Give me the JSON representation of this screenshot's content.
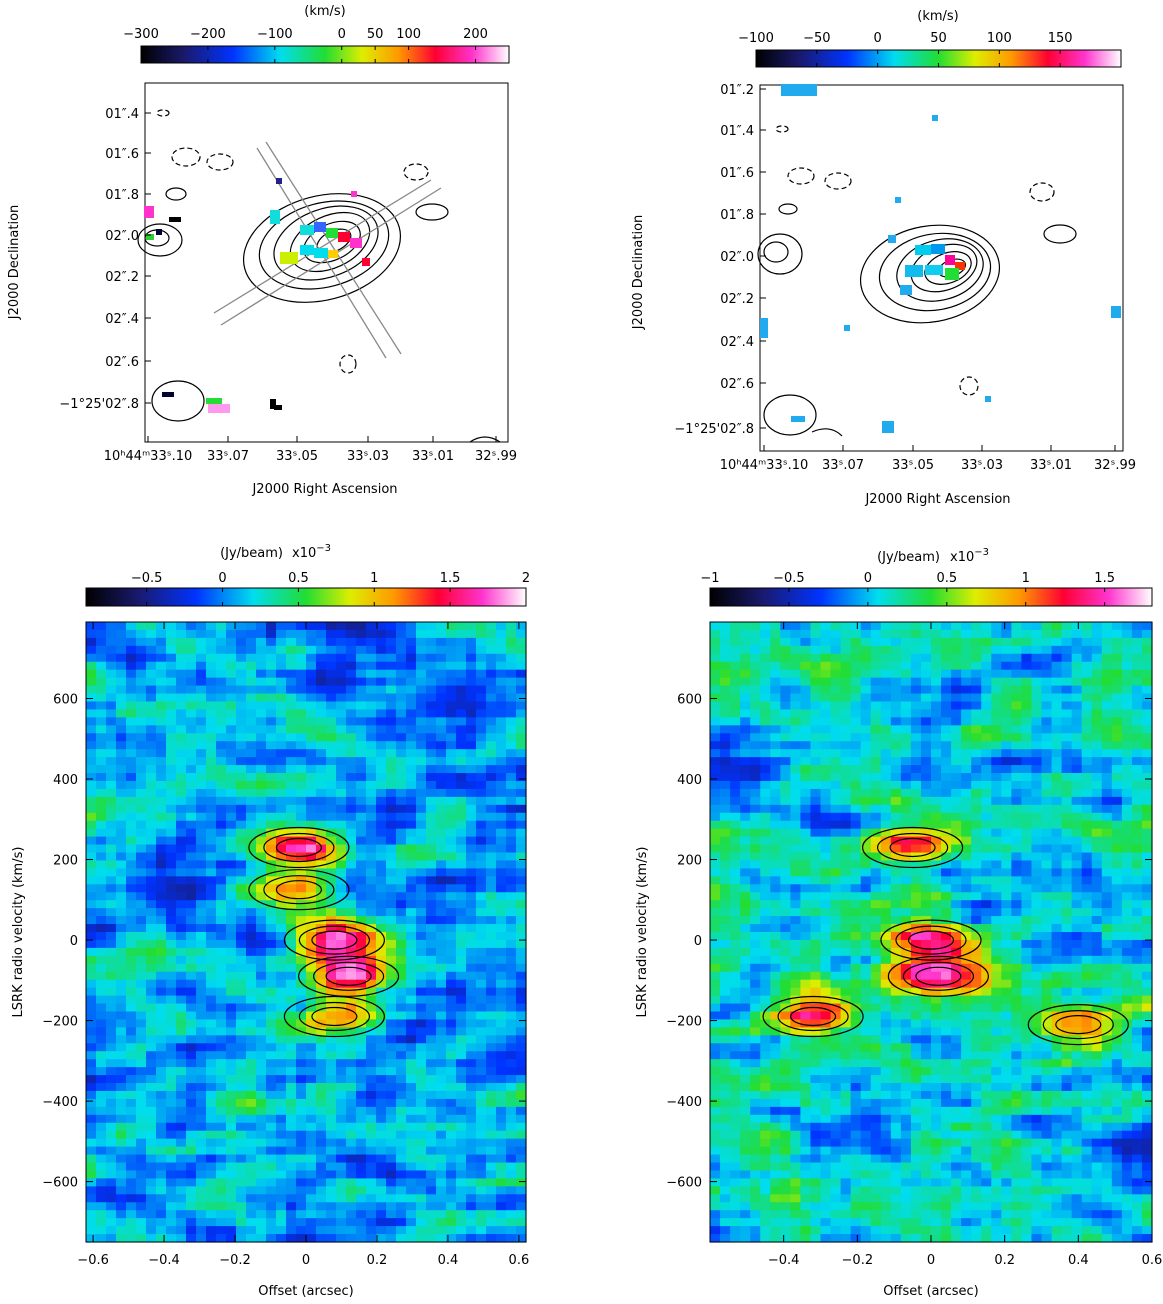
{
  "chart_data": [
    {
      "type": "heatmap",
      "panel": "top-left",
      "description_visible": "moment-1 velocity field with contours",
      "colorbar": {
        "title": "(km/s)",
        "ticks": [
          -300,
          -200,
          -100,
          0,
          50,
          100,
          200
        ],
        "range": [
          -300,
          250
        ],
        "palette": "rainbow"
      },
      "x_ticks": [
        "10h44m33s.10",
        "33s.07",
        "33s.05",
        "33s.03",
        "33s.01",
        "32s.99"
      ],
      "y_ticks": [
        "01''.4",
        "01''.6",
        "01''.8",
        "02''.0",
        "02''.2",
        "02''.4",
        "02''.6",
        "−1°25'02''.8"
      ],
      "xlabel": "J2000 Right Ascension",
      "ylabel": "J2000 Declination",
      "overlays": "two pairs of slit lines along major and minor axes; beam ellipse at lower left",
      "grid": false
    },
    {
      "type": "heatmap",
      "panel": "top-right",
      "colorbar": {
        "title": "(km/s)",
        "ticks": [
          -100,
          -50,
          0,
          50,
          100,
          150
        ],
        "range": [
          -100,
          200
        ],
        "palette": "rainbow"
      },
      "x_ticks": [
        "10h44m33s.10",
        "33s.07",
        "33s.05",
        "33s.03",
        "33s.01",
        "32s.99"
      ],
      "y_ticks": [
        "01''.2",
        "01''.4",
        "01''.6",
        "01''.8",
        "02''.0",
        "02''.2",
        "02''.4",
        "02''.6",
        "−1°25'02''.8"
      ],
      "xlabel": "J2000 Right Ascension",
      "ylabel": "J2000 Declination",
      "grid": false
    },
    {
      "type": "heatmap",
      "panel": "bottom-left",
      "colorbar": {
        "title": "(Jy/beam)",
        "multiplier": "x10",
        "multiplier_exp": "−3",
        "ticks": [
          "−0.5",
          "0",
          "0.5",
          "1",
          "1.5",
          "2"
        ],
        "range": [
          -0.9,
          2.0
        ],
        "palette": "rainbow"
      },
      "x_ticks": [
        "−0.6",
        "−0.4",
        "−0.2",
        "0",
        "0.2",
        "0.4",
        "0.6"
      ],
      "xlim": [
        -0.62,
        0.62
      ],
      "y_ticks": [
        "600",
        "400",
        "200",
        "0",
        "−200",
        "−400",
        "−600"
      ],
      "ylim": [
        -750,
        790
      ],
      "xlabel": "Offset (arcsec)",
      "ylabel": "LSRK radio velocity  (km/s)",
      "emission_peaks": [
        {
          "x": -0.02,
          "y": 230,
          "level": 1.6
        },
        {
          "x": -0.02,
          "y": 125,
          "level": 1.1
        },
        {
          "x": 0.08,
          "y": 0,
          "level": 1.7
        },
        {
          "x": 0.12,
          "y": -90,
          "level": 1.9
        },
        {
          "x": 0.08,
          "y": -190,
          "level": 0.9
        }
      ],
      "grid": false
    },
    {
      "type": "heatmap",
      "panel": "bottom-right",
      "colorbar": {
        "title": "(Jy/beam)",
        "multiplier": "x10",
        "multiplier_exp": "−3",
        "ticks": [
          "−1",
          "−0.5",
          "0",
          "0.5",
          "1",
          "1.5"
        ],
        "range": [
          -1.0,
          1.8
        ],
        "palette": "rainbow"
      },
      "x_ticks": [
        "−0.4",
        "−0.2",
        "0",
        "0.2",
        "0.4",
        "0.6"
      ],
      "xlim": [
        -0.6,
        0.6
      ],
      "y_ticks": [
        "600",
        "400",
        "200",
        "0",
        "−200",
        "−400",
        "−600"
      ],
      "ylim": [
        -750,
        790
      ],
      "xlabel": "Offset (arcsec)",
      "ylabel": "LSRK radio velocity  (km/s)",
      "emission_peaks": [
        {
          "x": -0.05,
          "y": 230,
          "level": 1.0
        },
        {
          "x": 0.0,
          "y": 0,
          "level": 1.5
        },
        {
          "x": 0.02,
          "y": -90,
          "level": 1.8
        },
        {
          "x": -0.32,
          "y": -190,
          "level": 1.1
        },
        {
          "x": 0.4,
          "y": -210,
          "level": 1.0
        }
      ],
      "grid": false
    }
  ]
}
